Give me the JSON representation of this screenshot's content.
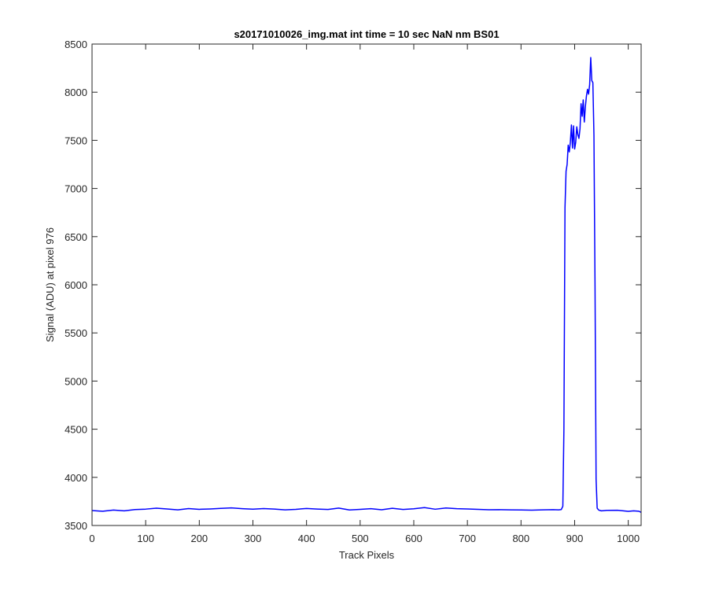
{
  "chart_data": {
    "type": "line",
    "title": "s20171010026_img.mat int time = 10 sec  NaN nm BS01",
    "xlabel": "Track Pixels",
    "ylabel": "Signal (ADU) at pixel 976",
    "xlim": [
      0,
      1024
    ],
    "ylim": [
      3500,
      8500
    ],
    "xticks": [
      0,
      100,
      200,
      300,
      400,
      500,
      600,
      700,
      800,
      900,
      1000
    ],
    "yticks": [
      3500,
      4000,
      4500,
      5000,
      5500,
      6000,
      6500,
      7000,
      7500,
      8000,
      8500
    ],
    "grid": false,
    "box": true,
    "series": [
      {
        "color": "#0000ff",
        "x": [
          0,
          20,
          40,
          60,
          80,
          100,
          120,
          140,
          160,
          180,
          200,
          220,
          240,
          260,
          280,
          300,
          320,
          340,
          360,
          380,
          400,
          420,
          440,
          460,
          480,
          500,
          520,
          540,
          560,
          580,
          600,
          620,
          640,
          660,
          680,
          700,
          720,
          740,
          760,
          780,
          800,
          820,
          840,
          860,
          870,
          875,
          878,
          880,
          882,
          884,
          886,
          888,
          890,
          892,
          894,
          896,
          898,
          900,
          902,
          904,
          906,
          908,
          910,
          912,
          914,
          916,
          918,
          920,
          922,
          924,
          926,
          928,
          930,
          932,
          934,
          936,
          938,
          940,
          942,
          945,
          950,
          960,
          980,
          1000,
          1010,
          1020,
          1024
        ],
        "y": [
          3655,
          3648,
          3660,
          3652,
          3665,
          3670,
          3680,
          3672,
          3662,
          3676,
          3668,
          3672,
          3678,
          3683,
          3675,
          3669,
          3676,
          3671,
          3662,
          3668,
          3677,
          3671,
          3666,
          3681,
          3661,
          3667,
          3675,
          3663,
          3679,
          3666,
          3674,
          3686,
          3669,
          3682,
          3675,
          3672,
          3667,
          3663,
          3664,
          3662,
          3661,
          3659,
          3662,
          3664,
          3662,
          3665,
          3700,
          4500,
          6800,
          7180,
          7250,
          7450,
          7380,
          7480,
          7660,
          7420,
          7650,
          7410,
          7480,
          7640,
          7560,
          7520,
          7620,
          7880,
          7750,
          7920,
          7690,
          7850,
          7960,
          8030,
          7980,
          8080,
          8360,
          8120,
          8100,
          7550,
          6000,
          3980,
          3680,
          3660,
          3652,
          3657,
          3658,
          3647,
          3652,
          3648,
          3636
        ]
      }
    ]
  }
}
